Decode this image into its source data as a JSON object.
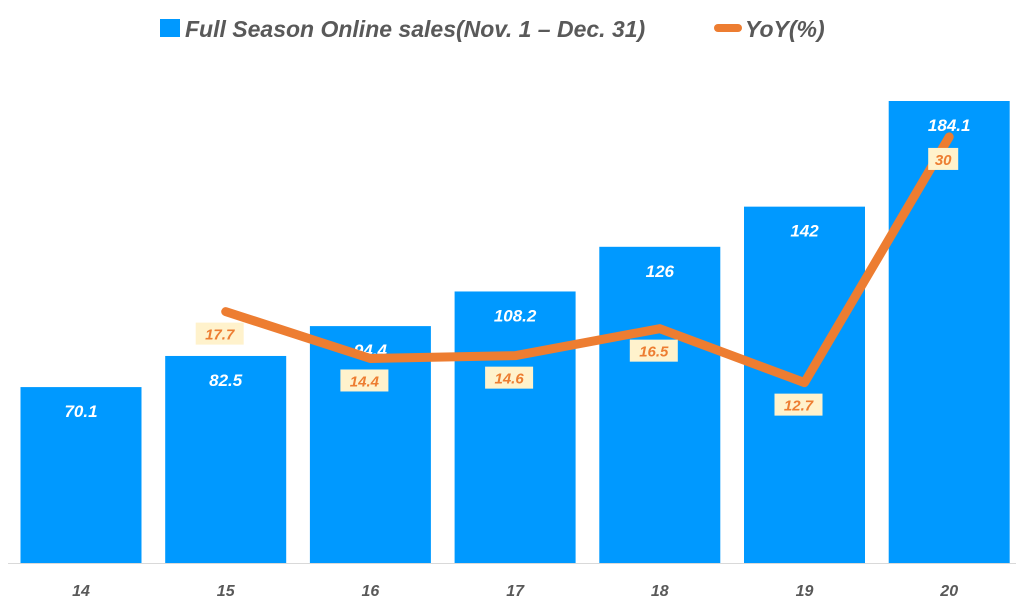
{
  "chart_data": {
    "type": "bar",
    "categories": [
      "14",
      "15",
      "16",
      "17",
      "18",
      "19",
      "20"
    ],
    "series": [
      {
        "name": "Full Season Online sales(Nov. 1 – Dec. 31)",
        "type": "bar",
        "axis": "primary",
        "values": [
          70.1,
          82.5,
          94.4,
          108.2,
          126,
          142,
          184.1
        ]
      },
      {
        "name": "YoY(%)",
        "type": "line",
        "axis": "secondary",
        "values": [
          null,
          17.7,
          14.4,
          14.6,
          16.5,
          12.7,
          30
        ]
      }
    ],
    "bar_labels": [
      "70.1",
      "82.5",
      "94.4",
      "108.2",
      "126",
      "142",
      "184.1"
    ],
    "line_labels": [
      "",
      "17.7",
      "14.4",
      "14.6",
      "16.5",
      "12.7",
      "30"
    ],
    "ylim": [
      0,
      184.5
    ],
    "y2lim": [
      0,
      32.6
    ],
    "grid": false,
    "legend_placement": "top",
    "colors": {
      "bar": "#0099FF",
      "line": "#ED7D31",
      "label_box": "#FFF2CC",
      "text": "#595959"
    }
  }
}
